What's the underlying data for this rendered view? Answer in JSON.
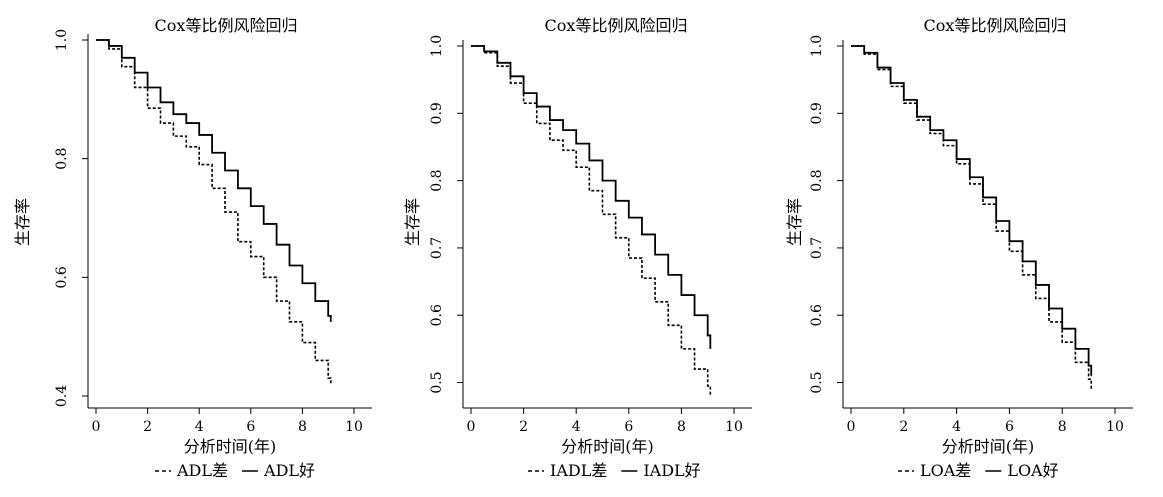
{
  "chart_data": [
    {
      "type": "line",
      "title": "Cox等比例风险回归",
      "xlabel": "分析时间(年)",
      "ylabel": "生存率",
      "xlim": [
        0,
        10
      ],
      "ylim": [
        0.4,
        1.0
      ],
      "xticks": [
        0,
        2,
        4,
        6,
        8,
        10
      ],
      "yticks": [
        0.4,
        0.6,
        0.8,
        1.0
      ],
      "xtick_labels": [
        "0",
        "2",
        "4",
        "6",
        "8",
        "10"
      ],
      "ytick_labels": [
        "0.4",
        "0.6",
        "0.8",
        "1.0"
      ],
      "grid": false,
      "legend_position": "bottom",
      "series": [
        {
          "name": "ADL差",
          "style": "dashed",
          "x": [
            0,
            0.5,
            1,
            1.5,
            2,
            2.5,
            3,
            3.5,
            4,
            4.5,
            5,
            5.5,
            6,
            6.5,
            7,
            7.5,
            8,
            8.5,
            9,
            9.1
          ],
          "y": [
            1.0,
            0.985,
            0.955,
            0.92,
            0.885,
            0.86,
            0.838,
            0.82,
            0.79,
            0.75,
            0.71,
            0.66,
            0.635,
            0.6,
            0.56,
            0.525,
            0.49,
            0.46,
            0.43,
            0.42
          ]
        },
        {
          "name": "ADL好",
          "style": "solid",
          "x": [
            0,
            0.5,
            1,
            1.5,
            2,
            2.5,
            3,
            3.5,
            4,
            4.5,
            5,
            5.5,
            6,
            6.5,
            7,
            7.5,
            8,
            8.5,
            9,
            9.1
          ],
          "y": [
            1.0,
            0.99,
            0.97,
            0.945,
            0.92,
            0.895,
            0.875,
            0.86,
            0.84,
            0.81,
            0.78,
            0.75,
            0.72,
            0.69,
            0.655,
            0.62,
            0.59,
            0.56,
            0.535,
            0.525
          ]
        }
      ]
    },
    {
      "type": "line",
      "title": "Cox等比例风险回归",
      "xlabel": "分析时间(年)",
      "ylabel": "生存率",
      "xlim": [
        0,
        10
      ],
      "ylim": [
        0.48,
        1.0
      ],
      "xticks": [
        0,
        2,
        4,
        6,
        8,
        10
      ],
      "yticks": [
        0.5,
        0.6,
        0.7,
        0.8,
        0.9,
        1.0
      ],
      "xtick_labels": [
        "0",
        "2",
        "4",
        "6",
        "8",
        "10"
      ],
      "ytick_labels": [
        "0.5",
        "0.6",
        "0.7",
        "0.8",
        "0.9",
        "1.0"
      ],
      "grid": false,
      "legend_position": "bottom",
      "series": [
        {
          "name": "IADL差",
          "style": "dashed",
          "x": [
            0,
            0.5,
            1,
            1.5,
            2,
            2.5,
            3,
            3.5,
            4,
            4.5,
            5,
            5.5,
            6,
            6.5,
            7,
            7.5,
            8,
            8.5,
            9,
            9.1
          ],
          "y": [
            1.0,
            0.99,
            0.97,
            0.945,
            0.915,
            0.885,
            0.86,
            0.845,
            0.82,
            0.785,
            0.75,
            0.715,
            0.685,
            0.655,
            0.62,
            0.585,
            0.55,
            0.52,
            0.495,
            0.48
          ]
        },
        {
          "name": "IADL好",
          "style": "solid",
          "x": [
            0,
            0.5,
            1,
            1.5,
            2,
            2.5,
            3,
            3.5,
            4,
            4.5,
            5,
            5.5,
            6,
            6.5,
            7,
            7.5,
            8,
            8.5,
            9,
            9.1
          ],
          "y": [
            1.0,
            0.992,
            0.975,
            0.955,
            0.93,
            0.91,
            0.89,
            0.875,
            0.855,
            0.83,
            0.8,
            0.77,
            0.745,
            0.72,
            0.69,
            0.66,
            0.63,
            0.6,
            0.57,
            0.55
          ]
        }
      ]
    },
    {
      "type": "line",
      "title": "Cox等比例风险回归",
      "xlabel": "分析时间(年)",
      "ylabel": "生存率",
      "xlim": [
        0,
        10
      ],
      "ylim": [
        0.48,
        1.0
      ],
      "xticks": [
        0,
        2,
        4,
        6,
        8,
        10
      ],
      "yticks": [
        0.5,
        0.6,
        0.7,
        0.8,
        0.9,
        1.0
      ],
      "xtick_labels": [
        "0",
        "2",
        "4",
        "6",
        "8",
        "10"
      ],
      "ytick_labels": [
        "0.5",
        "0.6",
        "0.7",
        "0.8",
        "0.9",
        "1.0"
      ],
      "grid": false,
      "legend_position": "bottom",
      "series": [
        {
          "name": "LOA差",
          "style": "dashed",
          "x": [
            0,
            0.5,
            1,
            1.5,
            2,
            2.5,
            3,
            3.5,
            4,
            4.5,
            5,
            5.5,
            6,
            6.5,
            7,
            7.5,
            8,
            8.5,
            9,
            9.1
          ],
          "y": [
            1.0,
            0.988,
            0.965,
            0.94,
            0.915,
            0.89,
            0.87,
            0.852,
            0.825,
            0.795,
            0.765,
            0.725,
            0.695,
            0.66,
            0.625,
            0.59,
            0.56,
            0.53,
            0.505,
            0.49
          ]
        },
        {
          "name": "LOA好",
          "style": "solid",
          "x": [
            0,
            0.5,
            1,
            1.5,
            2,
            2.5,
            3,
            3.5,
            4,
            4.5,
            5,
            5.5,
            6,
            6.5,
            7,
            7.5,
            8,
            8.5,
            9,
            9.1
          ],
          "y": [
            1.0,
            0.99,
            0.968,
            0.945,
            0.92,
            0.895,
            0.875,
            0.86,
            0.832,
            0.805,
            0.775,
            0.74,
            0.71,
            0.68,
            0.645,
            0.61,
            0.58,
            0.55,
            0.525,
            0.51
          ]
        }
      ]
    }
  ]
}
